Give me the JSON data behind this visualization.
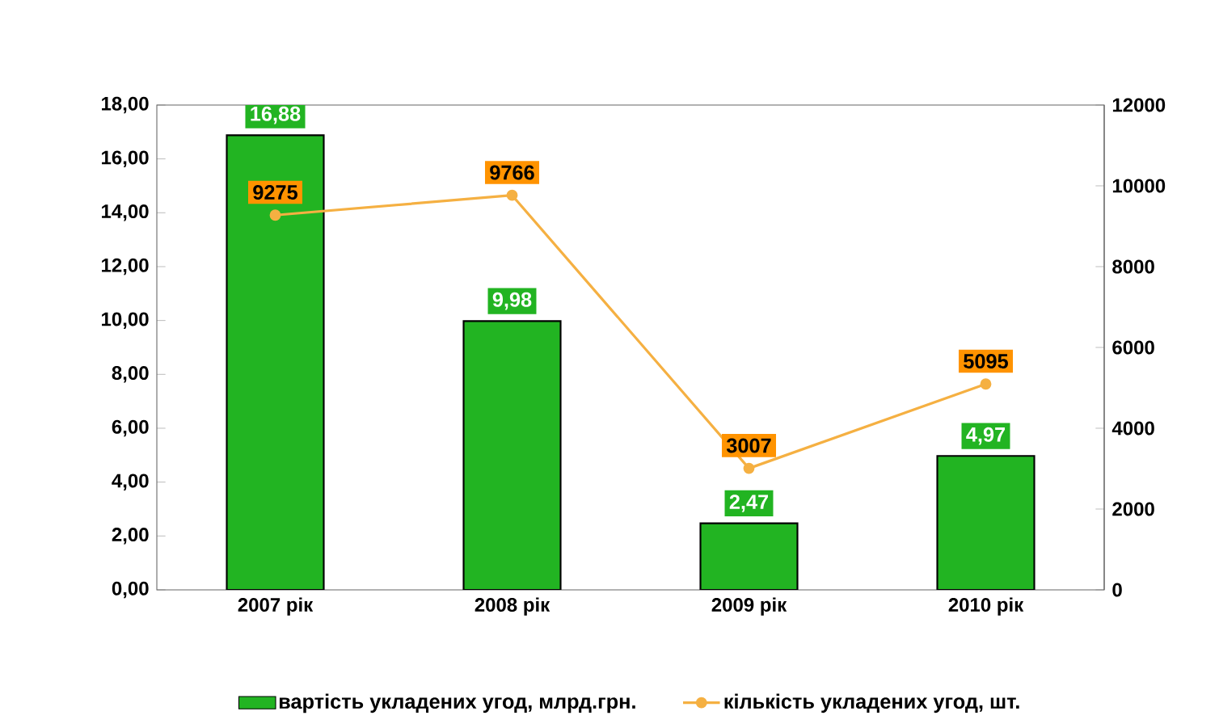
{
  "chart_data": {
    "type": "bar",
    "categories": [
      "2007 рік",
      "2008 рік",
      "2009 рік",
      "2010 рік"
    ],
    "series": [
      {
        "name": "вартість укладених угод, млрд.грн.",
        "color": "#22b422",
        "values": [
          16.88,
          9.98,
          2.47,
          4.97
        ],
        "value_labels": [
          "16,88",
          "9,98",
          "2,47",
          "4,97"
        ]
      },
      {
        "name": "кількість укладених угод, шт.",
        "type": "line",
        "axis": "y2",
        "color": "#f5b042",
        "marker": "circle",
        "values": [
          9275,
          9766,
          3007,
          5095
        ],
        "value_labels": [
          "9275",
          "9766",
          "3007",
          "5095"
        ]
      }
    ],
    "ylim": [
      0,
      18
    ],
    "yticks": [
      {
        "value": 0,
        "label": "0,00"
      },
      {
        "value": 2,
        "label": "2,00"
      },
      {
        "value": 4,
        "label": "4,00"
      },
      {
        "value": 6,
        "label": "6,00"
      },
      {
        "value": 8,
        "label": "8,00"
      },
      {
        "value": 10,
        "label": "10,00"
      },
      {
        "value": 12,
        "label": "12,00"
      },
      {
        "value": 14,
        "label": "14,00"
      },
      {
        "value": 16,
        "label": "16,00"
      },
      {
        "value": 18,
        "label": "18,00"
      }
    ],
    "y2lim": [
      0,
      12000
    ],
    "y2ticks": [
      0,
      2000,
      4000,
      6000,
      8000,
      10000,
      12000
    ],
    "grid": false,
    "legend": "bottom"
  }
}
